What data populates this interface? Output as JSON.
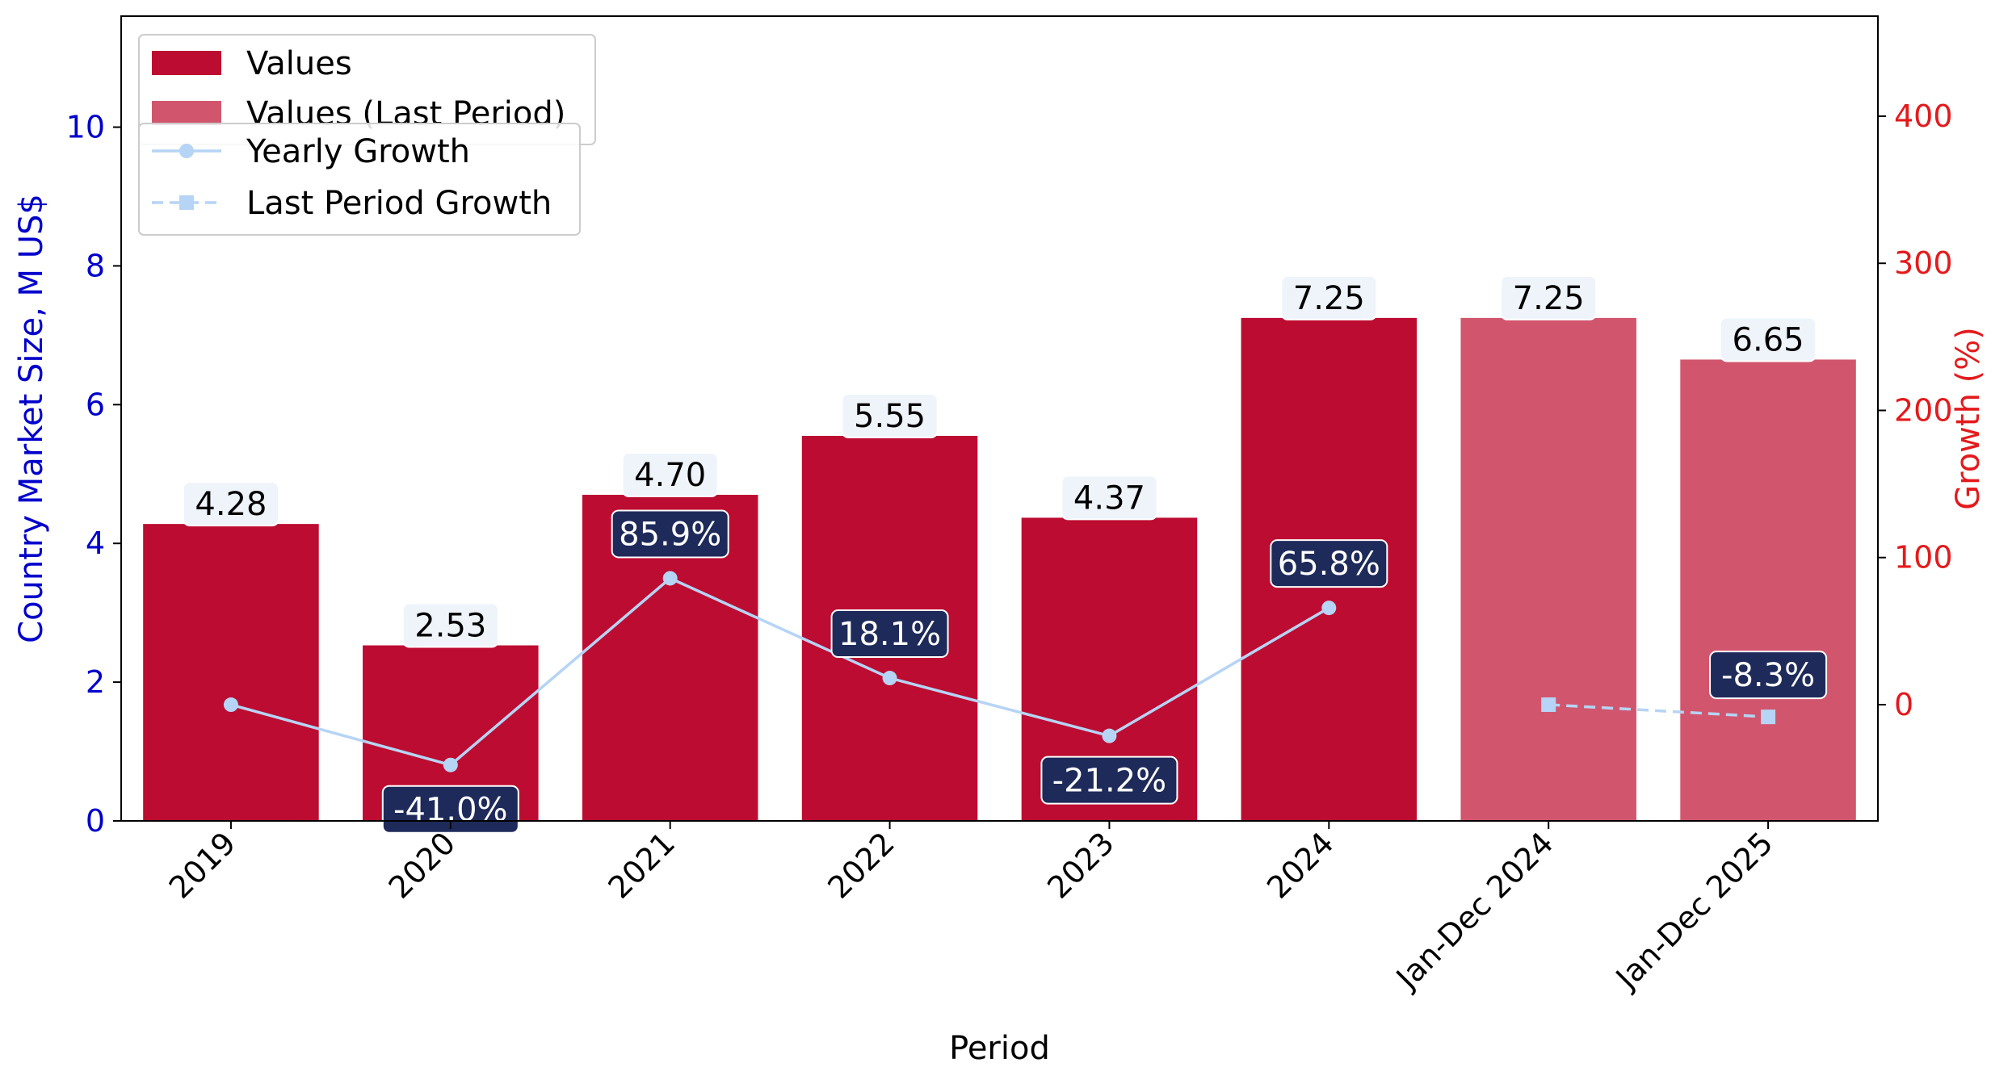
{
  "colors": {
    "bar": "#bd0c31",
    "bar_last": "#d1566d",
    "growth_line": "#b6d4f5",
    "growth_box": "#1e2a5a",
    "value_box": "#eef4fa",
    "left_axis": "#0000cc",
    "right_axis": "#e41a1c"
  },
  "chart_data": {
    "type": "bar",
    "xlabel": "Period",
    "ylabel": "Country Market Size, M US$",
    "y2label": "Growth (%)",
    "ylim": [
      0,
      11.6
    ],
    "y2lim": [
      -79,
      468
    ],
    "yticks": [
      0,
      2,
      4,
      6,
      8,
      10
    ],
    "y2ticks": [
      0,
      100,
      200,
      300,
      400
    ],
    "categories": [
      "2019",
      "2020",
      "2021",
      "2022",
      "2023",
      "2024",
      "Jan-Dec 2024",
      "Jan-Dec 2025"
    ],
    "series": [
      {
        "name": "Values",
        "kind": "bar",
        "values": [
          4.28,
          2.53,
          4.7,
          5.55,
          4.37,
          7.25,
          null,
          null
        ],
        "labels": [
          "4.28",
          "2.53",
          "4.70",
          "5.55",
          "4.37",
          "7.25",
          "",
          ""
        ]
      },
      {
        "name": "Values (Last Period)",
        "kind": "bar",
        "values": [
          null,
          null,
          null,
          null,
          null,
          null,
          7.25,
          6.65
        ],
        "labels": [
          "",
          "",
          "",
          "",
          "",
          "",
          "7.25",
          "6.65"
        ]
      },
      {
        "name": "Yearly Growth",
        "kind": "line",
        "axis": "right",
        "values": [
          0,
          -41.0,
          85.9,
          18.1,
          -21.2,
          65.8,
          null,
          null
        ],
        "labels": [
          "",
          "-41.0%",
          "85.9%",
          "18.1%",
          "-21.2%",
          "65.8%",
          "",
          ""
        ]
      },
      {
        "name": "Last Period Growth",
        "kind": "line",
        "axis": "right",
        "dashed": true,
        "values": [
          null,
          null,
          null,
          null,
          null,
          null,
          0,
          -8.3
        ],
        "labels": [
          "",
          "",
          "",
          "",
          "",
          "",
          "",
          "-8.3%"
        ]
      }
    ],
    "legend": {
      "bars": [
        "Values",
        "Values (Last Period)"
      ],
      "lines": [
        "Yearly Growth",
        "Last Period Growth"
      ],
      "placement": "top-left"
    },
    "grid": false
  }
}
